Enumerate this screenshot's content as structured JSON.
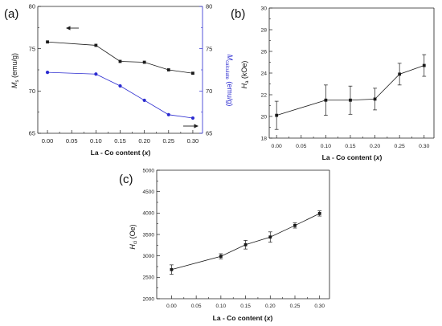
{
  "chart_data": [
    {
      "panel_label": "(a)",
      "type": "line",
      "x": [
        0.0,
        0.1,
        0.15,
        0.2,
        0.25,
        0.3
      ],
      "xlim": [
        -0.02,
        0.32
      ],
      "xticks": [
        "0.00",
        "0.05",
        "0.10",
        "0.15",
        "0.20",
        "0.25",
        "0.30"
      ],
      "xlabel": {
        "prefix": "La - Co content (",
        "var": "x",
        "suffix": ")"
      },
      "ylim": [
        65,
        80
      ],
      "yticks": [
        "65",
        "70",
        "75",
        "80"
      ],
      "ylabel": {
        "main": "M",
        "sub": "s",
        "unit": " (emu/g)"
      },
      "y2lim": [
        65,
        80
      ],
      "y2ticks": [
        "65",
        "70",
        "75",
        "80"
      ],
      "y2label": {
        "main": "M",
        "sub": "calculate",
        "unit": " (emu/g)"
      },
      "y2color": "#2b2bd0",
      "grid": false,
      "series": [
        {
          "marker": "square",
          "color": "#1a1a1a",
          "values": [
            75.8,
            75.4,
            73.5,
            73.4,
            72.5,
            72.1
          ]
        }
      ],
      "series_y2": [
        {
          "marker": "circle",
          "color": "#2b2bd0",
          "values": [
            72.2,
            72.0,
            70.6,
            68.9,
            67.2,
            66.8
          ]
        }
      ]
    },
    {
      "panel_label": "(b)",
      "type": "line",
      "x": [
        0.0,
        0.1,
        0.15,
        0.2,
        0.25,
        0.3
      ],
      "xlim": [
        -0.015,
        0.32
      ],
      "xticks": [
        "0.00",
        "0.05",
        "0.10",
        "0.15",
        "0.20",
        "0.25",
        "0.30"
      ],
      "xlabel": {
        "prefix": "La - Co content (",
        "var": "x",
        "suffix": ")"
      },
      "ylim": [
        18,
        30
      ],
      "yticks": [
        "18",
        "20",
        "22",
        "24",
        "26",
        "28",
        "30"
      ],
      "ylabel": {
        "main": "H",
        "sub": "a",
        "unit": " (kOe)"
      },
      "grid": false,
      "series": [
        {
          "marker": "square",
          "color": "#1a1a1a",
          "values": [
            20.1,
            21.5,
            21.5,
            21.6,
            23.9,
            24.7
          ],
          "errors": [
            1.3,
            1.4,
            1.3,
            1.0,
            1.0,
            1.0
          ]
        }
      ]
    },
    {
      "panel_label": "(c)",
      "type": "line",
      "x": [
        0.0,
        0.1,
        0.15,
        0.2,
        0.25,
        0.3
      ],
      "xlim": [
        -0.03,
        0.32
      ],
      "xticks": [
        "0.00",
        "0.05",
        "0.10",
        "0.15",
        "0.20",
        "0.25",
        "0.30"
      ],
      "xlabel": {
        "prefix": "La - Co content (",
        "var": "x",
        "suffix": ")"
      },
      "ylim": [
        2000,
        5000
      ],
      "yticks": [
        "2000",
        "2500",
        "3000",
        "3500",
        "4000",
        "4500",
        "5000"
      ],
      "ylabel": {
        "main": "H",
        "sub": "ci",
        "unit": " (Oe)"
      },
      "grid": false,
      "series": [
        {
          "marker": "square",
          "color": "#1a1a1a",
          "values": [
            2680,
            2990,
            3260,
            3440,
            3710,
            3990
          ],
          "errors": [
            110,
            60,
            100,
            120,
            60,
            60
          ]
        }
      ]
    }
  ]
}
